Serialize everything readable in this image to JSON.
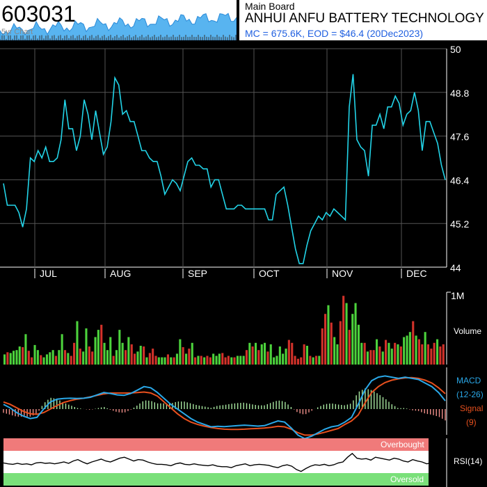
{
  "header": {
    "ticker": "603031",
    "five_yr_label": "5yr Chart",
    "board": "Main Board",
    "company": "ANHUI ANFU BATTERY TECHNOLOGY",
    "summary": "MC = 675.6K, EOD = $46.4 (20Dec2023)"
  },
  "colors": {
    "price_line": "#22d4e8",
    "macd_line": "#2aa8e8",
    "signal_line": "#e8501e",
    "volume_up": "#4cd23c",
    "volume_down": "#d2322a",
    "overbought_band": "#f07a7a",
    "oversold_band": "#7ae07a",
    "grid": "#555555"
  },
  "chart_data": [
    {
      "type": "line",
      "name": "price",
      "y_ticks": [
        "50",
        "48.8",
        "47.6",
        "46.4",
        "45.2",
        "44"
      ],
      "ylim": [
        44,
        50
      ],
      "grid": true,
      "x_ticks": [
        "JUL",
        "AUG",
        "SEP",
        "OCT",
        "NOV",
        "DEC"
      ],
      "values": [
        46.3,
        45.7,
        45.7,
        45.7,
        45.5,
        45.1,
        45.6,
        47.0,
        46.9,
        47.2,
        47.0,
        47.3,
        46.9,
        46.9,
        47.0,
        47.5,
        48.6,
        47.8,
        47.8,
        47.2,
        47.6,
        48.6,
        48.2,
        47.5,
        48.3,
        47.7,
        47.1,
        47.3,
        48.0,
        49.2,
        49.0,
        48.2,
        48.3,
        48.0,
        48.0,
        47.6,
        47.2,
        47.2,
        47.0,
        46.9,
        46.9,
        46.5,
        46.0,
        46.2,
        46.4,
        46.3,
        46.1,
        46.5,
        46.9,
        47.0,
        46.8,
        46.8,
        46.7,
        46.7,
        46.2,
        46.4,
        46.4,
        46.0,
        45.6,
        45.6,
        45.6,
        45.7,
        45.7,
        45.6,
        45.6,
        45.6,
        45.6,
        45.6,
        45.6,
        45.3,
        45.3,
        46.0,
        46.1,
        46.2,
        45.7,
        45.1,
        44.5,
        44.1,
        44.1,
        44.6,
        45.0,
        45.2,
        45.4,
        45.3,
        45.5,
        45.4,
        45.6,
        45.5,
        45.4,
        45.3,
        48.4,
        49.3,
        47.5,
        47.3,
        47.2,
        46.5,
        47.9,
        47.9,
        48.2,
        47.8,
        48.4,
        48.4,
        48.7,
        48.5,
        47.9,
        48.2,
        48.3,
        48.8,
        48.3,
        47.2,
        48.0,
        48.0,
        47.7,
        47.4,
        46.8,
        46.4
      ],
      "ylabel": ""
    },
    {
      "type": "bar",
      "name": "volume",
      "y_tick": "1M",
      "label": "Volume",
      "ylim": [
        0,
        1000000
      ],
      "values": [
        0.14,
        0.17,
        0.16,
        0.19,
        0.2,
        0.25,
        0.24,
        0.42,
        0.19,
        0.1,
        0.27,
        0.2,
        0.13,
        0.1,
        0.14,
        0.17,
        0.2,
        0.12,
        0.2,
        0.42,
        0.2,
        0.16,
        0.12,
        0.3,
        0.6,
        0.22,
        0.18,
        0.5,
        0.25,
        0.18,
        0.38,
        0.48,
        0.55,
        0.3,
        0.2,
        0.38,
        0.12,
        0.2,
        0.48,
        0.3,
        0.2,
        0.38,
        0.28,
        0.15,
        0.18,
        0.26,
        0.25,
        0.1,
        0.16,
        0.22,
        0.12,
        0.1,
        0.1,
        0.1,
        0.14,
        0.1,
        0.1,
        0.15,
        0.35,
        0.24,
        0.15,
        0.22,
        0.3,
        0.1,
        0.12,
        0.12,
        0.1,
        0.12,
        0.1,
        0.15,
        0.12,
        0.15,
        0.16,
        0.1,
        0.12,
        0.1,
        0.1,
        0.12,
        0.12,
        0.12,
        0.2,
        0.3,
        0.25,
        0.3,
        0.2,
        0.28,
        0.3,
        0.18,
        0.28,
        0.1,
        0.12,
        0.25,
        0.15,
        0.22,
        0.34,
        0.3,
        0.12,
        0.08,
        0.1,
        0.28,
        0.26,
        0.12,
        0.1,
        0.12,
        0.12,
        0.5,
        0.7,
        0.82,
        0.58,
        0.38,
        0.28,
        0.6,
        0.95,
        0.85,
        0.48,
        0.7,
        0.85,
        0.55,
        0.3,
        0.3,
        0.18,
        0.2,
        0.2,
        0.35,
        0.25,
        0.18,
        0.34,
        0.3,
        0.22,
        0.3,
        0.28,
        0.25,
        0.38,
        0.4,
        0.45,
        0.6,
        0.4,
        0.35,
        0.28,
        0.45,
        0.28,
        0.22,
        0.3,
        0.35,
        0.25,
        0.28
      ],
      "up": [
        true,
        false,
        true,
        true,
        true,
        true,
        false,
        true,
        false,
        false,
        true,
        true,
        false,
        true,
        true,
        true,
        true,
        false,
        true,
        true,
        false,
        true,
        false,
        false,
        true,
        false,
        true,
        true,
        false,
        false,
        true,
        true,
        false,
        true,
        true,
        true,
        false,
        true,
        true,
        true,
        false,
        true,
        false,
        false,
        true,
        true,
        false,
        true,
        false,
        false,
        false,
        true,
        true,
        true,
        false,
        true,
        false,
        true,
        true,
        false,
        true,
        false,
        true,
        false,
        true,
        false,
        true,
        false,
        false,
        true,
        true,
        true,
        false,
        false,
        false,
        true,
        false,
        true,
        true,
        true,
        false,
        true,
        false,
        true,
        false,
        true,
        true,
        false,
        true,
        true,
        true,
        true,
        true,
        true,
        false,
        false,
        false,
        false,
        false,
        false,
        true,
        false,
        true,
        false,
        true,
        false,
        false,
        true,
        false,
        true,
        true,
        false,
        false,
        true,
        false,
        true,
        true,
        true,
        true,
        false,
        true,
        false,
        false,
        true,
        false,
        true,
        false,
        true,
        true,
        false,
        true,
        false,
        true,
        true,
        true,
        false,
        true,
        false,
        false,
        true,
        false,
        false,
        false,
        true,
        false,
        false
      ]
    },
    {
      "type": "line",
      "name": "macd",
      "labels": [
        "MACD",
        "(12-26)",
        "Signal",
        "(9)"
      ],
      "macd": [
        0.2,
        0.05,
        -0.15,
        -0.3,
        -0.4,
        -0.35,
        0.0,
        0.3,
        0.42,
        0.45,
        0.46,
        0.45,
        0.46,
        0.5,
        0.6,
        0.7,
        0.66,
        0.6,
        0.58,
        0.66,
        0.8,
        0.95,
        0.9,
        0.7,
        0.45,
        0.2,
        0.0,
        -0.2,
        -0.4,
        -0.55,
        -0.65,
        -0.75,
        -0.73,
        -0.74,
        -0.72,
        -0.7,
        -0.68,
        -0.7,
        -0.72,
        -0.7,
        -0.6,
        -0.5,
        -0.55,
        -0.8,
        -1.1,
        -1.25,
        -1.15,
        -1.0,
        -0.85,
        -0.75,
        -0.7,
        -0.55,
        -0.35,
        0.2,
        0.8,
        1.2,
        1.35,
        1.4,
        1.35,
        1.3,
        1.35,
        1.3,
        1.25,
        1.1,
        0.95,
        0.7,
        0.35
      ],
      "signal": [
        0.3,
        0.2,
        0.05,
        -0.1,
        -0.2,
        -0.22,
        -0.15,
        0.0,
        0.15,
        0.28,
        0.36,
        0.42,
        0.46,
        0.52,
        0.58,
        0.64,
        0.68,
        0.68,
        0.68,
        0.68,
        0.7,
        0.72,
        0.68,
        0.55,
        0.3,
        0.05,
        -0.2,
        -0.4,
        -0.55,
        -0.65,
        -0.72,
        -0.78,
        -0.82,
        -0.85,
        -0.86,
        -0.86,
        -0.85,
        -0.83,
        -0.82,
        -0.8,
        -0.77,
        -0.73,
        -0.75,
        -0.85,
        -1.0,
        -1.1,
        -1.1,
        -1.05,
        -0.98,
        -0.9,
        -0.82,
        -0.65,
        -0.5,
        -0.25,
        0.25,
        0.7,
        0.95,
        1.12,
        1.22,
        1.28,
        1.32,
        1.33,
        1.3,
        1.22,
        1.1,
        0.9,
        0.65
      ]
    },
    {
      "type": "line",
      "name": "rsi",
      "label": "RSI(14)",
      "overbought_label": "Overbought",
      "oversold_label": "Oversold",
      "ylim": [
        0,
        100
      ],
      "values": [
        48,
        46,
        45,
        47,
        45,
        46,
        44,
        48,
        49,
        47,
        48,
        46,
        48,
        50,
        47,
        52,
        55,
        50,
        46,
        50,
        53,
        56,
        52,
        50,
        54,
        58,
        60,
        56,
        52,
        55,
        54,
        50,
        47,
        45,
        45,
        44,
        42,
        46,
        48,
        45,
        44,
        46,
        44,
        43,
        42,
        44,
        41,
        40,
        40,
        38,
        42,
        44,
        46,
        42,
        44,
        45,
        44,
        43,
        40,
        38,
        42,
        44,
        41,
        34,
        30,
        36,
        41,
        44,
        43,
        45,
        42,
        44,
        48,
        50,
        60,
        68,
        58,
        56,
        57,
        54,
        60,
        58,
        56,
        54,
        58,
        56,
        52,
        50,
        55,
        52,
        50,
        46,
        48,
        50,
        46,
        44
      ]
    }
  ]
}
